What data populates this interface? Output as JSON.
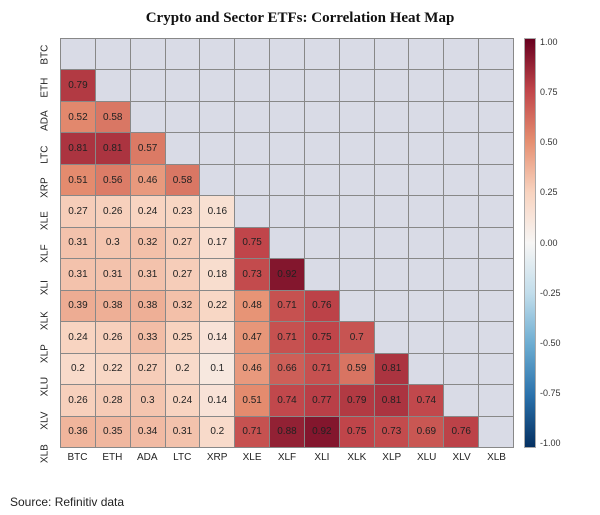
{
  "title": "Crypto and Sector ETFs: Correlation Heat Map",
  "title_fontsize": 15,
  "source": "Source: Refinitiv data",
  "heatmap": {
    "type": "heatmap",
    "labels": [
      "BTC",
      "ETH",
      "ADA",
      "LTC",
      "XRP",
      "XLE",
      "XLF",
      "XLI",
      "XLK",
      "XLP",
      "XLU",
      "XLV",
      "XLB"
    ],
    "label_fontsize": 10,
    "cell_fontsize": 10,
    "empty_cell_color": "#d9dbe6",
    "grid_color": "#888888",
    "background_color": "#ffffff",
    "matrix": [
      [
        null,
        null,
        null,
        null,
        null,
        null,
        null,
        null,
        null,
        null,
        null,
        null,
        null
      ],
      [
        0.79,
        null,
        null,
        null,
        null,
        null,
        null,
        null,
        null,
        null,
        null,
        null,
        null
      ],
      [
        0.52,
        0.58,
        null,
        null,
        null,
        null,
        null,
        null,
        null,
        null,
        null,
        null,
        null
      ],
      [
        0.81,
        0.81,
        0.57,
        null,
        null,
        null,
        null,
        null,
        null,
        null,
        null,
        null,
        null
      ],
      [
        0.51,
        0.56,
        0.46,
        0.58,
        null,
        null,
        null,
        null,
        null,
        null,
        null,
        null,
        null
      ],
      [
        0.27,
        0.26,
        0.24,
        0.23,
        0.16,
        null,
        null,
        null,
        null,
        null,
        null,
        null,
        null
      ],
      [
        0.31,
        0.3,
        0.32,
        0.27,
        0.17,
        0.75,
        null,
        null,
        null,
        null,
        null,
        null,
        null
      ],
      [
        0.31,
        0.31,
        0.31,
        0.27,
        0.18,
        0.73,
        0.92,
        null,
        null,
        null,
        null,
        null,
        null
      ],
      [
        0.39,
        0.38,
        0.38,
        0.32,
        0.22,
        0.48,
        0.71,
        0.76,
        null,
        null,
        null,
        null,
        null
      ],
      [
        0.24,
        0.26,
        0.33,
        0.25,
        0.14,
        0.47,
        0.71,
        0.75,
        0.7,
        null,
        null,
        null,
        null
      ],
      [
        0.2,
        0.22,
        0.27,
        0.2,
        0.1,
        0.46,
        0.66,
        0.71,
        0.59,
        0.81,
        null,
        null,
        null
      ],
      [
        0.26,
        0.28,
        0.3,
        0.24,
        0.14,
        0.51,
        0.74,
        0.77,
        0.79,
        0.81,
        0.74,
        null,
        null
      ],
      [
        0.36,
        0.35,
        0.34,
        0.31,
        0.2,
        0.71,
        0.88,
        0.92,
        0.75,
        0.73,
        0.69,
        0.76,
        null
      ]
    ],
    "colorscale": {
      "vmin": -1.0,
      "vmax": 1.0,
      "ticks": [
        1.0,
        0.75,
        0.5,
        0.25,
        -0.0,
        -0.25,
        -0.5,
        -0.75,
        -1.0
      ],
      "stops": [
        {
          "v": -1.0,
          "color": "#053061"
        },
        {
          "v": -0.75,
          "color": "#2a71ab"
        },
        {
          "v": -0.5,
          "color": "#6bacd1"
        },
        {
          "v": -0.25,
          "color": "#c1ddeb"
        },
        {
          "v": 0.0,
          "color": "#f7f6f5"
        },
        {
          "v": 0.25,
          "color": "#f8d3bf"
        },
        {
          "v": 0.5,
          "color": "#e58e70"
        },
        {
          "v": 0.75,
          "color": "#c0454a"
        },
        {
          "v": 1.0,
          "color": "#67001f"
        }
      ],
      "gradient_css": "linear-gradient(to bottom, #67001f 0%, #c0454a 12.5%, #e58e70 25%, #f8d3bf 37.5%, #f7f6f5 50%, #c1ddeb 62.5%, #6bacd1 75%, #2a71ab 87.5%, #053061 100%)"
    }
  }
}
